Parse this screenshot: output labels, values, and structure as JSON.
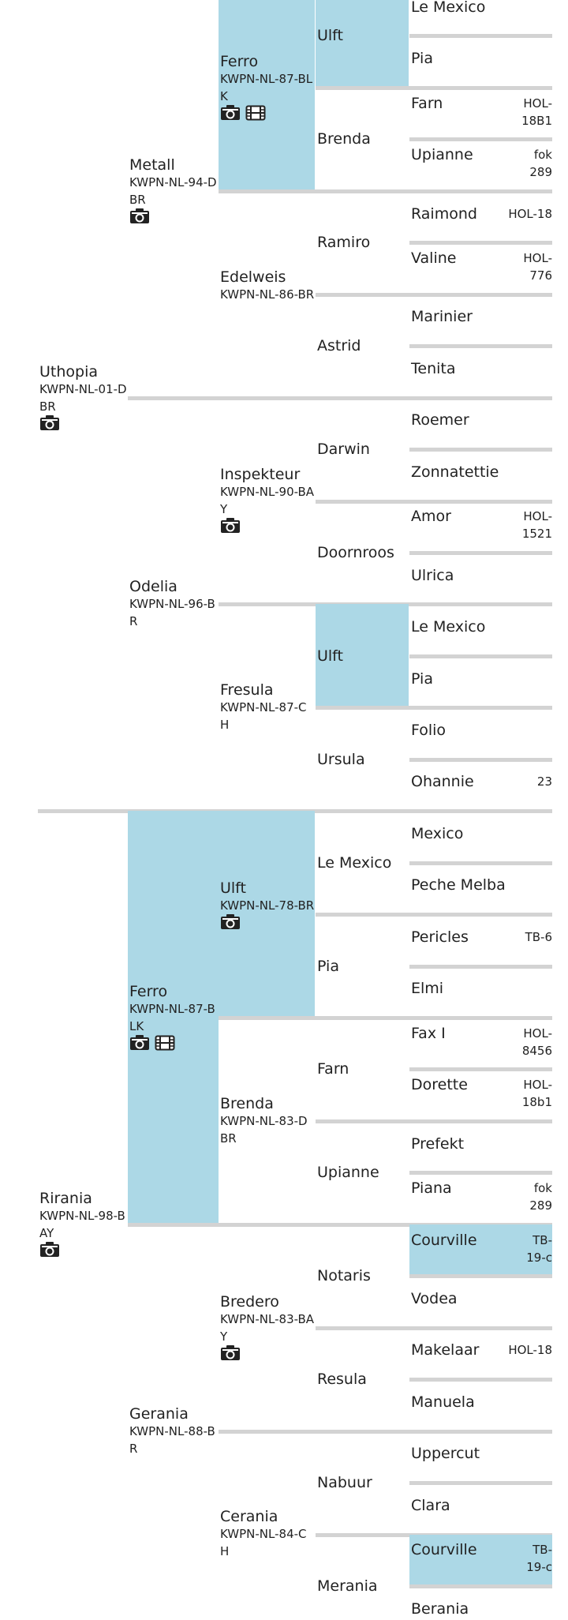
{
  "pedigree": {
    "gen1": [
      {
        "name": "Uthopia",
        "reg": "KWPN-NL-01-DBR",
        "camera": true,
        "video": false
      },
      {
        "name": "Rirania",
        "reg": "KWPN-NL-98-BAY",
        "camera": true,
        "video": false
      }
    ],
    "gen2": [
      {
        "name": "Metall",
        "reg": "KWPN-NL-94-DBR",
        "camera": true,
        "video": false
      },
      {
        "name": "Odelia",
        "reg": "KWPN-NL-96-BR",
        "camera": false,
        "video": false
      },
      {
        "name": "Ferro",
        "reg": "KWPN-NL-87-BLK",
        "camera": true,
        "video": true,
        "highlight": true
      },
      {
        "name": "Gerania",
        "reg": "KWPN-NL-88-BR",
        "camera": false,
        "video": false
      }
    ],
    "gen3": [
      {
        "name": "Ferro",
        "reg": "KWPN-NL-87-BLK",
        "camera": true,
        "video": true,
        "highlight": true
      },
      {
        "name": "Edelweis",
        "reg": "KWPN-NL-86-BR",
        "camera": false,
        "video": false
      },
      {
        "name": "Inspekteur",
        "reg": "KWPN-NL-90-BAY",
        "camera": true,
        "video": false
      },
      {
        "name": "Fresula",
        "reg": "KWPN-NL-87-CH",
        "camera": false,
        "video": false
      },
      {
        "name": "Ulft",
        "reg": "KWPN-NL-78-BR",
        "camera": true,
        "video": false,
        "highlight": true
      },
      {
        "name": "Brenda",
        "reg": "KWPN-NL-83-DBR",
        "camera": false,
        "video": false
      },
      {
        "name": "Bredero",
        "reg": "KWPN-NL-83-BAY",
        "camera": true,
        "video": false
      },
      {
        "name": "Cerania",
        "reg": "KWPN-NL-84-CH",
        "camera": false,
        "video": false
      }
    ],
    "gen4": [
      {
        "name": "Ulft",
        "highlight": true
      },
      {
        "name": "Brenda"
      },
      {
        "name": "Ramiro"
      },
      {
        "name": "Astrid"
      },
      {
        "name": "Darwin"
      },
      {
        "name": "Doornroos"
      },
      {
        "name": "Ulft",
        "highlight": true
      },
      {
        "name": "Ursula"
      },
      {
        "name": "Le Mexico"
      },
      {
        "name": "Pia"
      },
      {
        "name": "Farn"
      },
      {
        "name": "Upianne"
      },
      {
        "name": "Notaris"
      },
      {
        "name": "Resula"
      },
      {
        "name": "Nabuur"
      },
      {
        "name": "Merania"
      }
    ],
    "gen5": [
      {
        "name": "Le Mexico",
        "reg": ""
      },
      {
        "name": "Pia",
        "reg": ""
      },
      {
        "name": "Farn",
        "reg": "HOL-18B1"
      },
      {
        "name": "Upianne",
        "reg": "fok 289"
      },
      {
        "name": "Raimond",
        "reg": "HOL-18"
      },
      {
        "name": "Valine",
        "reg": "HOL-776"
      },
      {
        "name": "Marinier",
        "reg": ""
      },
      {
        "name": "Tenita",
        "reg": ""
      },
      {
        "name": "Roemer",
        "reg": ""
      },
      {
        "name": "Zonnatettie",
        "reg": ""
      },
      {
        "name": "Amor",
        "reg": "HOL-1521"
      },
      {
        "name": "Ulrica",
        "reg": ""
      },
      {
        "name": "Le Mexico",
        "reg": ""
      },
      {
        "name": "Pia",
        "reg": ""
      },
      {
        "name": "Folio",
        "reg": ""
      },
      {
        "name": "Ohannie",
        "reg": "23"
      },
      {
        "name": "Mexico",
        "reg": ""
      },
      {
        "name": "Peche Melba",
        "reg": ""
      },
      {
        "name": "Pericles",
        "reg": "TB-6"
      },
      {
        "name": "Elmi",
        "reg": ""
      },
      {
        "name": "Fax I",
        "reg": "HOL-8456"
      },
      {
        "name": "Dorette",
        "reg": "HOL-18b1"
      },
      {
        "name": "Prefekt",
        "reg": ""
      },
      {
        "name": "Piana",
        "reg": "fok 289"
      },
      {
        "name": "Courville",
        "reg": "TB-19-c",
        "highlight": true
      },
      {
        "name": "Vodea",
        "reg": ""
      },
      {
        "name": "Makelaar",
        "reg": "HOL-18"
      },
      {
        "name": "Manuela",
        "reg": ""
      },
      {
        "name": "Uppercut",
        "reg": ""
      },
      {
        "name": "Clara",
        "reg": ""
      },
      {
        "name": "Courville",
        "reg": "TB-19-c",
        "highlight": true
      },
      {
        "name": "Berania",
        "reg": ""
      }
    ]
  }
}
